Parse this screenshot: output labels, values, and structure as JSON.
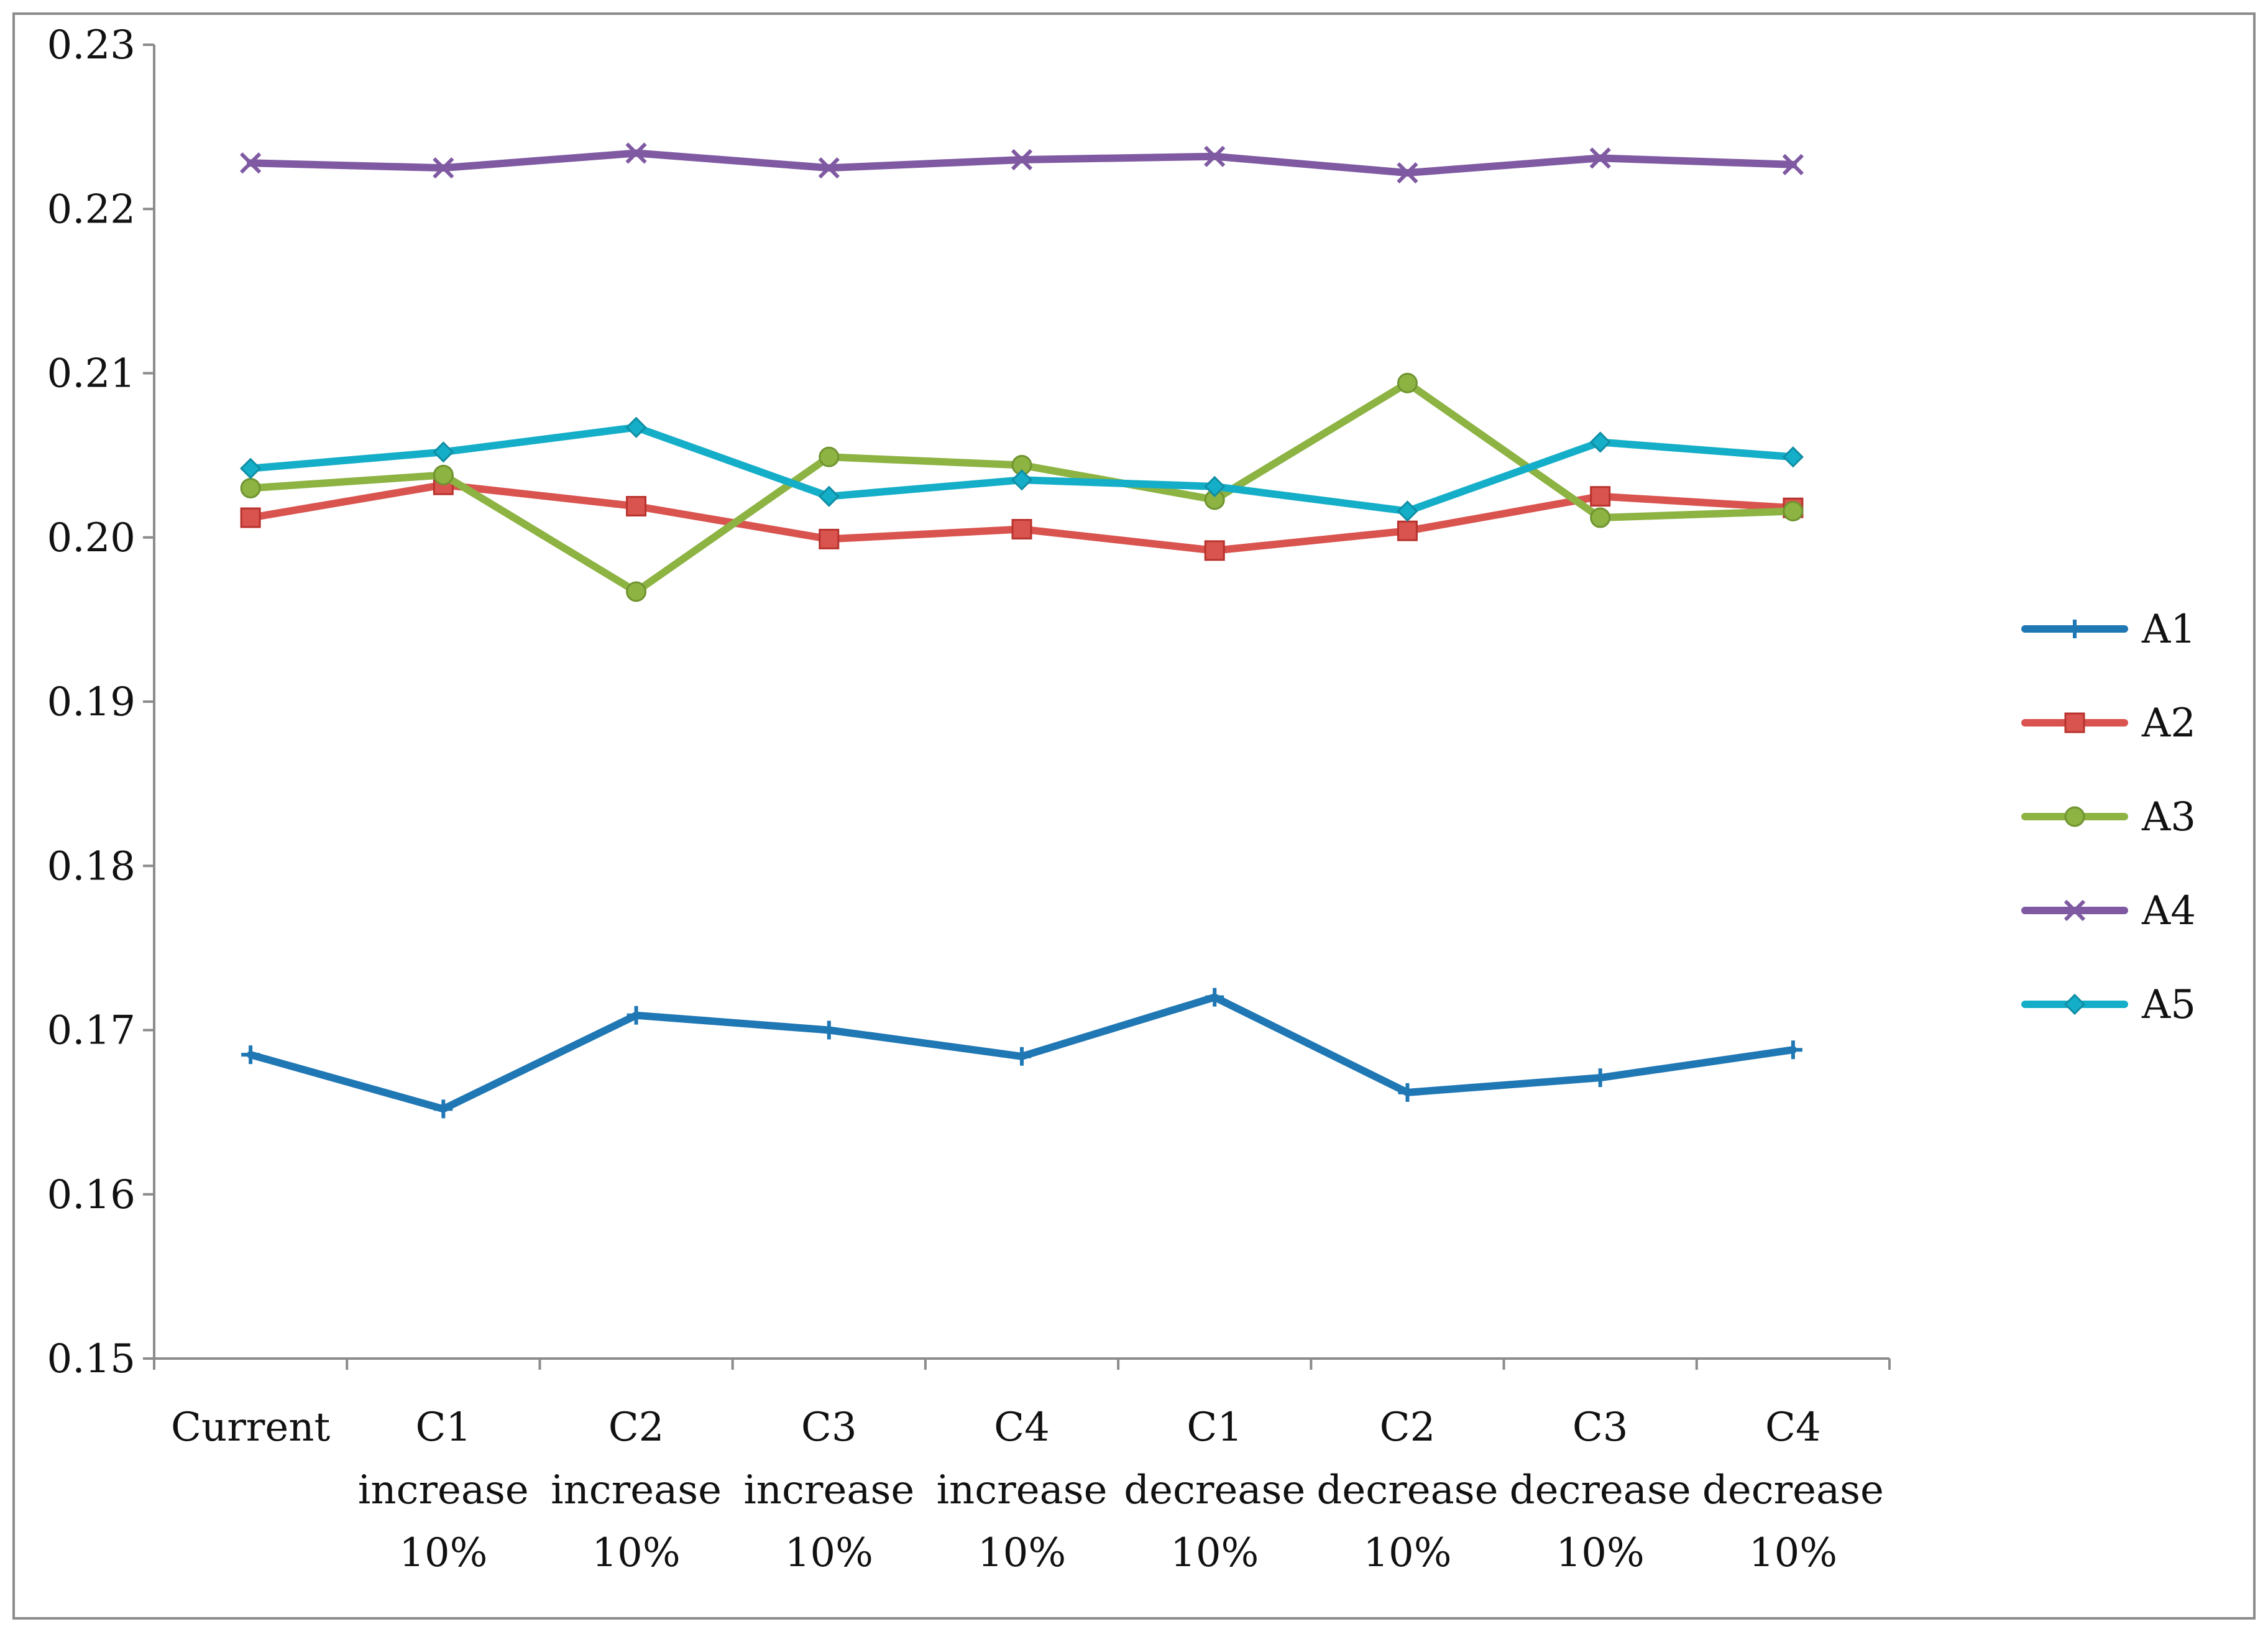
{
  "chart_data": {
    "type": "line",
    "title": "",
    "xlabel": "",
    "ylabel": "",
    "ylim": [
      0.15,
      0.23
    ],
    "y_ticks": [
      "0.15",
      "0.16",
      "0.17",
      "0.18",
      "0.19",
      "0.20",
      "0.21",
      "0.22",
      "0.23"
    ],
    "y_tick_values": [
      0.15,
      0.16,
      0.17,
      0.18,
      0.19,
      0.2,
      0.21,
      0.22,
      0.23
    ],
    "grid": false,
    "legend_position": "right",
    "categories": [
      [
        "Current"
      ],
      [
        "C1",
        "increase",
        "10%"
      ],
      [
        "C2",
        "increase",
        "10%"
      ],
      [
        "C3",
        "increase",
        "10%"
      ],
      [
        "C4",
        "increase",
        "10%"
      ],
      [
        "C1",
        "decrease",
        "10%"
      ],
      [
        "C2",
        "decrease",
        "10%"
      ],
      [
        "C3",
        "decrease",
        "10%"
      ],
      [
        "C4",
        "decrease",
        "10%"
      ]
    ],
    "series": [
      {
        "name": "A1",
        "color": "#1f77b4",
        "marker": "plus",
        "values": [
          0.1685,
          0.1652,
          0.1709,
          0.17,
          0.1684,
          0.172,
          0.1662,
          0.1671,
          0.1688
        ]
      },
      {
        "name": "A2",
        "color": "#d9534f",
        "marker": "square",
        "values": [
          0.2012,
          0.2032,
          0.2019,
          0.1999,
          0.2005,
          0.1992,
          0.2004,
          0.2025,
          0.2018
        ]
      },
      {
        "name": "A3",
        "color": "#8db343",
        "marker": "circle",
        "values": [
          0.203,
          0.2038,
          0.1967,
          0.2049,
          0.2044,
          0.2023,
          0.2094,
          0.2012,
          0.2016
        ]
      },
      {
        "name": "A4",
        "color": "#7f5aa2",
        "marker": "x",
        "values": [
          0.2228,
          0.2225,
          0.2234,
          0.2225,
          0.223,
          0.2232,
          0.2222,
          0.2231,
          0.2227
        ]
      },
      {
        "name": "A5",
        "color": "#15aec8",
        "marker": "diamond",
        "values": [
          0.2042,
          0.2052,
          0.2067,
          0.2025,
          0.2035,
          0.2031,
          0.2016,
          0.2058,
          0.2049
        ]
      }
    ]
  }
}
